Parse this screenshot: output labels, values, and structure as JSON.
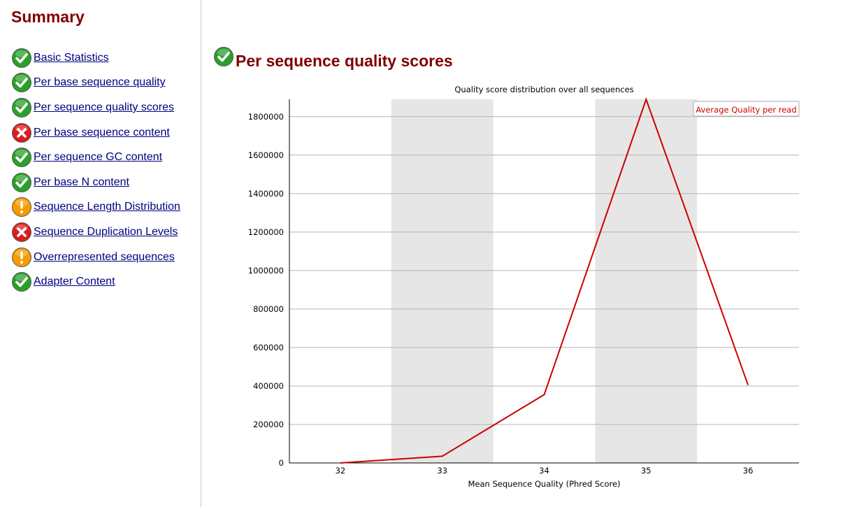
{
  "sidebar": {
    "title": "Summary",
    "items": [
      {
        "label": "Basic Statistics",
        "status": "pass",
        "icon": "check-icon"
      },
      {
        "label": "Per base sequence quality",
        "status": "pass",
        "icon": "check-icon"
      },
      {
        "label": "Per sequence quality scores",
        "status": "pass",
        "icon": "check-icon"
      },
      {
        "label": "Per base sequence content",
        "status": "fail",
        "icon": "cross-icon"
      },
      {
        "label": "Per sequence GC content",
        "status": "pass",
        "icon": "check-icon"
      },
      {
        "label": "Per base N content",
        "status": "pass",
        "icon": "check-icon"
      },
      {
        "label": "Sequence Length Distribution",
        "status": "warn",
        "icon": "warning-icon"
      },
      {
        "label": "Sequence Duplication Levels",
        "status": "fail",
        "icon": "cross-icon"
      },
      {
        "label": "Overrepresented sequences",
        "status": "warn",
        "icon": "warning-icon"
      },
      {
        "label": "Adapter Content",
        "status": "pass",
        "icon": "check-icon"
      }
    ]
  },
  "main": {
    "title": "Per sequence quality scores",
    "status": "pass",
    "icon": "check-icon"
  },
  "colors": {
    "heading": "#800000",
    "link": "#000080",
    "series": "#cc0000",
    "band": "#e6e6e6",
    "grid": "#b4b4b4",
    "pass": "#2aa02a",
    "fail": "#d81e1e",
    "warn": "#f59b00"
  },
  "chart_data": {
    "type": "line",
    "title": "Quality score distribution over all sequences",
    "xlabel": "Mean Sequence Quality (Phred Score)",
    "ylabel": "",
    "x": [
      32,
      33,
      34,
      35,
      36
    ],
    "series": [
      {
        "name": "Average Quality per read",
        "values": [
          0,
          35000,
          355000,
          1890000,
          405000
        ]
      }
    ],
    "y_ticks": [
      0,
      200000,
      400000,
      600000,
      800000,
      1000000,
      1200000,
      1400000,
      1600000,
      1800000
    ],
    "y_tick_labels": [
      "0",
      "200000",
      "400000",
      "600000",
      "800000",
      "1000000",
      "1200000",
      "1400000",
      "1600000",
      "1800000"
    ],
    "ylim": [
      0,
      1890000
    ],
    "shaded_x": [
      33,
      35
    ],
    "grid": true,
    "legend_position": "top-right"
  }
}
